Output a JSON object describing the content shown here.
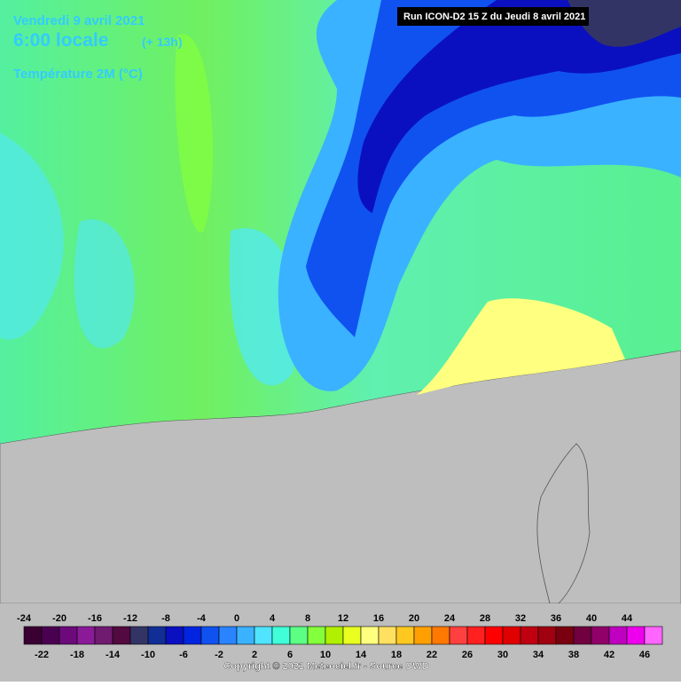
{
  "header": {
    "date": "Vendredi 9 avril 2021",
    "time": "6:00 locale",
    "lead": "(+ 13h)",
    "variable": "Température 2M (°C)",
    "run": "Run ICON-D2 15 Z du Jeudi 8 avril 2021"
  },
  "legend": {
    "values": [
      -24,
      -22,
      -20,
      -18,
      -16,
      -14,
      -12,
      -10,
      -8,
      -6,
      -4,
      -2,
      0,
      2,
      4,
      6,
      8,
      10,
      12,
      14,
      16,
      18,
      20,
      22,
      24,
      26,
      28,
      30,
      32,
      34,
      36,
      38,
      40,
      42,
      44,
      46
    ],
    "colors": [
      "#3a0032",
      "#4a0050",
      "#6c0a7c",
      "#8a1a98",
      "#701a70",
      "#520a40",
      "#333466",
      "#102e96",
      "#0a10c0",
      "#0024e0",
      "#1052f0",
      "#2a84ff",
      "#3ab2ff",
      "#50e4ff",
      "#40ffd8",
      "#5cff84",
      "#84ff3c",
      "#b0f000",
      "#e8ff20",
      "#ffff80",
      "#ffe060",
      "#ffc820",
      "#ffa000",
      "#ff7800",
      "#ff4040",
      "#ff2020",
      "#ff0000",
      "#e00000",
      "#c00010",
      "#a00010",
      "#7a0010",
      "#700040",
      "#900068",
      "#c000c0",
      "#ee00ee",
      "#ff66ff"
    ]
  },
  "footer": {
    "copyright": "Copyright © 2021 Meteociel.fr - Source DWD"
  }
}
